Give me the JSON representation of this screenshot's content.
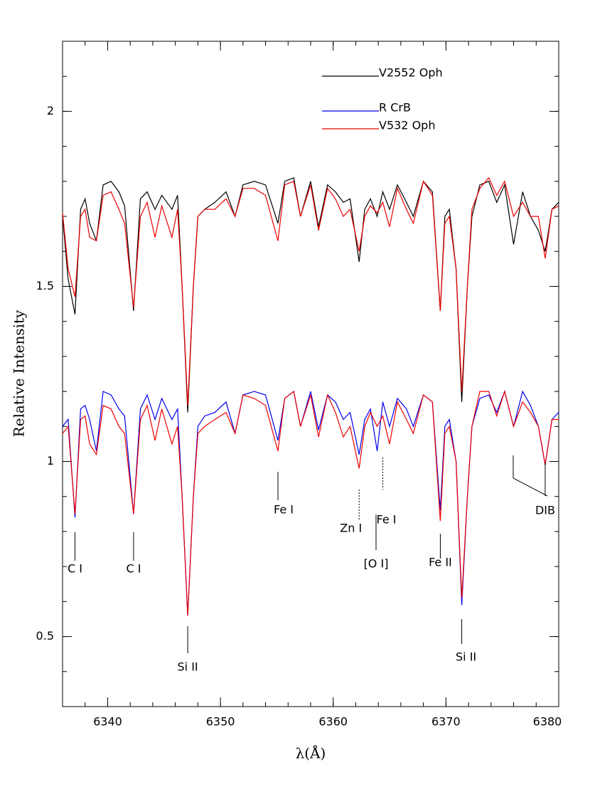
{
  "chart_data": {
    "type": "line",
    "xlabel": "λ(Å)",
    "ylabel": "Relative Intensity",
    "xlim": [
      6336,
      6380
    ],
    "ylim": [
      0.3,
      2.2
    ],
    "xticks": [
      6340,
      6350,
      6360,
      6370,
      6380
    ],
    "yticks": [
      0.5,
      1,
      1.5,
      2
    ],
    "xminor": 2,
    "yminor": 0.1,
    "x": [
      6336,
      6336.5,
      6337.1,
      6337.6,
      6338.0,
      6338.4,
      6339.0,
      6339.6,
      6340.3,
      6341.0,
      6341.5,
      6342.3,
      6342.9,
      6343.5,
      6344.2,
      6344.8,
      6345.7,
      6346.2,
      6346.6,
      6347.1,
      6347.6,
      6348.0,
      6348.6,
      6349.5,
      6350.5,
      6351.3,
      6352.0,
      6353.0,
      6354.0,
      6355.1,
      6355.7,
      6356.5,
      6357.1,
      6358.0,
      6358.7,
      6359.5,
      6360.2,
      6360.9,
      6361.5,
      6362.3,
      6362.8,
      6363.3,
      6363.9,
      6364.4,
      6365.0,
      6365.7,
      6366.5,
      6367.1,
      6368.0,
      6368.8,
      6369.5,
      6369.9,
      6370.3,
      6370.9,
      6371.4,
      6371.9,
      6372.3,
      6373.0,
      6373.8,
      6374.5,
      6375.2,
      6376.0,
      6376.8,
      6377.5,
      6378.2,
      6378.8,
      6379.4,
      6380
    ],
    "series": [
      {
        "name": "V2552 Oph",
        "color": "#000000",
        "values": [
          1.7,
          1.52,
          1.42,
          1.72,
          1.75,
          1.68,
          1.63,
          1.79,
          1.8,
          1.77,
          1.73,
          1.43,
          1.75,
          1.77,
          1.72,
          1.76,
          1.72,
          1.76,
          1.5,
          1.14,
          1.5,
          1.7,
          1.72,
          1.74,
          1.77,
          1.7,
          1.79,
          1.8,
          1.79,
          1.68,
          1.8,
          1.81,
          1.7,
          1.8,
          1.67,
          1.79,
          1.77,
          1.74,
          1.75,
          1.57,
          1.72,
          1.75,
          1.7,
          1.77,
          1.72,
          1.79,
          1.74,
          1.7,
          1.8,
          1.77,
          1.43,
          1.7,
          1.72,
          1.55,
          1.17,
          1.5,
          1.7,
          1.79,
          1.8,
          1.74,
          1.79,
          1.62,
          1.77,
          1.7,
          1.66,
          1.6,
          1.72,
          1.74
        ]
      },
      {
        "name": "R CrB",
        "color": "#0000ee",
        "values": [
          1.1,
          1.12,
          0.84,
          1.15,
          1.16,
          1.12,
          1.03,
          1.2,
          1.19,
          1.15,
          1.13,
          0.85,
          1.15,
          1.19,
          1.12,
          1.18,
          1.12,
          1.15,
          0.9,
          0.56,
          0.9,
          1.1,
          1.13,
          1.14,
          1.17,
          1.08,
          1.19,
          1.2,
          1.19,
          1.06,
          1.18,
          1.2,
          1.1,
          1.2,
          1.09,
          1.19,
          1.17,
          1.12,
          1.14,
          1.02,
          1.12,
          1.15,
          1.03,
          1.17,
          1.1,
          1.18,
          1.15,
          1.1,
          1.19,
          1.17,
          0.86,
          1.1,
          1.12,
          1.0,
          0.59,
          0.9,
          1.1,
          1.18,
          1.19,
          1.14,
          1.2,
          1.1,
          1.2,
          1.16,
          1.1,
          0.99,
          1.12,
          1.14
        ]
      },
      {
        "name": "V532 Oph",
        "color": "#ee0000",
        "values": [
          1.08,
          1.1,
          0.85,
          1.12,
          1.13,
          1.05,
          1.02,
          1.16,
          1.15,
          1.1,
          1.08,
          0.85,
          1.12,
          1.16,
          1.06,
          1.15,
          1.05,
          1.1,
          0.9,
          0.56,
          0.9,
          1.08,
          1.1,
          1.12,
          1.14,
          1.08,
          1.19,
          1.18,
          1.16,
          1.03,
          1.18,
          1.2,
          1.1,
          1.19,
          1.07,
          1.19,
          1.14,
          1.07,
          1.1,
          0.98,
          1.1,
          1.14,
          1.1,
          1.13,
          1.05,
          1.17,
          1.12,
          1.08,
          1.19,
          1.17,
          0.83,
          1.08,
          1.1,
          1.0,
          0.61,
          0.9,
          1.1,
          1.2,
          1.2,
          1.13,
          1.2,
          1.1,
          1.17,
          1.14,
          1.1,
          0.99,
          1.12,
          1.12
        ]
      },
      {
        "color": "#ee0000",
        "values": [
          1.71,
          1.55,
          1.47,
          1.7,
          1.72,
          1.64,
          1.63,
          1.76,
          1.77,
          1.72,
          1.68,
          1.44,
          1.7,
          1.74,
          1.64,
          1.73,
          1.64,
          1.72,
          1.5,
          1.16,
          1.5,
          1.7,
          1.72,
          1.72,
          1.75,
          1.7,
          1.78,
          1.78,
          1.76,
          1.63,
          1.79,
          1.8,
          1.7,
          1.79,
          1.66,
          1.78,
          1.75,
          1.7,
          1.72,
          1.6,
          1.7,
          1.73,
          1.71,
          1.74,
          1.67,
          1.78,
          1.72,
          1.68,
          1.8,
          1.76,
          1.43,
          1.68,
          1.7,
          1.55,
          1.2,
          1.5,
          1.72,
          1.78,
          1.81,
          1.76,
          1.8,
          1.7,
          1.74,
          1.7,
          1.7,
          1.58,
          1.72,
          1.73
        ]
      }
    ],
    "annotations": [
      {
        "text": "C I",
        "x": 6337.1
      },
      {
        "text": "C I",
        "x": 6342.3
      },
      {
        "text": "Si II",
        "x": 6347.1
      },
      {
        "text": "Fe I",
        "x": 6355.1
      },
      {
        "text": "Zn I",
        "x": 6362.3
      },
      {
        "text": "Fe I",
        "x": 6364.4
      },
      {
        "text": "[O I]",
        "x": 6363.8
      },
      {
        "text": "Fe II",
        "x": 6369.5
      },
      {
        "text": "Si II",
        "x": 6371.4
      },
      {
        "text": "DIB",
        "x": 6378.8
      }
    ]
  }
}
